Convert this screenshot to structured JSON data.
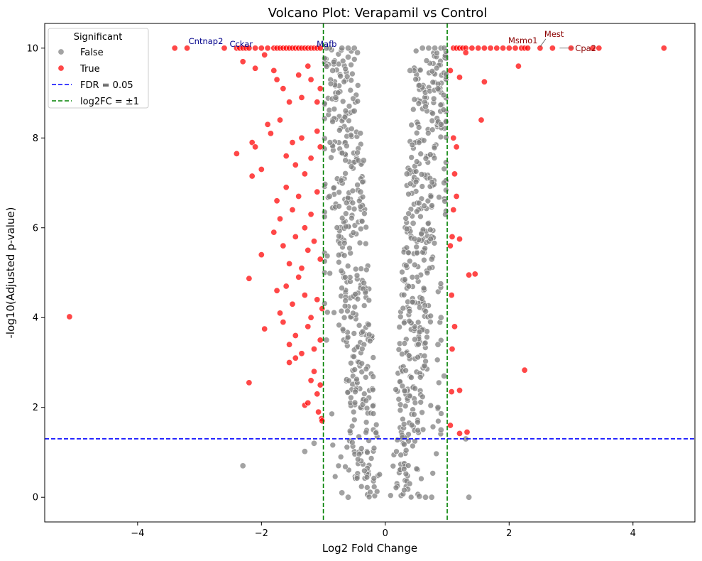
{
  "chart_data": {
    "type": "scatter",
    "title": "Volcano Plot: Verapamil vs Control",
    "xlabel": "Log2 Fold Change",
    "ylabel": "-log10(Adjusted p-value)",
    "xlim": [
      -5.5,
      5.0
    ],
    "ylim": [
      -0.55,
      10.55
    ],
    "xticks": [
      -4,
      -2,
      0,
      2,
      4
    ],
    "yticks": [
      0,
      2,
      4,
      6,
      8,
      10
    ],
    "grid": false,
    "legend": {
      "title": "Significant",
      "placement": "top-left",
      "entries": [
        {
          "label": "False",
          "kind": "marker",
          "color": "#808080"
        },
        {
          "label": "True",
          "kind": "marker",
          "color": "#ff0000"
        },
        {
          "label": "FDR = 0.05",
          "kind": "dashed-line",
          "color": "#0000ff"
        },
        {
          "label": "log2FC = ±1",
          "kind": "dashed-line",
          "color": "#008000"
        }
      ]
    },
    "reference_lines": [
      {
        "orientation": "horizontal",
        "value": 1.30103,
        "color": "#0000ff",
        "label": "FDR = 0.05"
      },
      {
        "orientation": "vertical",
        "value": -1,
        "color": "#008000",
        "label": "log2FC = ±1"
      },
      {
        "orientation": "vertical",
        "value": 1,
        "color": "#008000",
        "label": "log2FC = ±1"
      }
    ],
    "series": [
      {
        "name": "False",
        "color": "#808080",
        "points": [
          [
            -2.3,
            0.7
          ],
          [
            -1.3,
            1.02
          ],
          [
            -1.15,
            1.2
          ],
          [
            1.35,
            0.0
          ],
          [
            1.3,
            1.3
          ],
          [
            0.55,
            0.02
          ],
          [
            0.65,
            0.0
          ],
          [
            0.75,
            0.0
          ],
          [
            0.9,
            1.5
          ],
          [
            0.85,
            2.0
          ],
          [
            -0.6,
            0.0
          ],
          [
            -0.7,
            0.1
          ],
          [
            -0.95,
            3.5
          ],
          [
            -0.9,
            6.7
          ],
          [
            -0.85,
            9.5
          ],
          [
            -0.8,
            8.9
          ],
          [
            -0.6,
            9.8
          ],
          [
            -0.5,
            8.6
          ],
          [
            -0.4,
            6.8
          ],
          [
            -0.35,
            7.5
          ],
          [
            -0.9,
            10.0
          ],
          [
            -0.95,
            10.0
          ],
          [
            -0.7,
            10.0
          ],
          [
            -0.6,
            10.0
          ],
          [
            -0.5,
            10.0
          ],
          [
            -0.45,
            9.9
          ],
          [
            0.6,
            10.0
          ],
          [
            0.7,
            10.0
          ],
          [
            0.8,
            10.0
          ],
          [
            0.9,
            10.0
          ],
          [
            0.95,
            10.0
          ],
          [
            0.85,
            9.1
          ],
          [
            0.9,
            8.3
          ],
          [
            0.95,
            7.0
          ],
          [
            0.65,
            8.7
          ],
          [
            0.75,
            5.3
          ],
          [
            0.9,
            4.0
          ],
          [
            0.95,
            2.7
          ],
          [
            0.85,
            3.4
          ],
          [
            0.4,
            9.5
          ],
          [
            0.35,
            7.2
          ],
          [
            0.45,
            6.1
          ]
        ]
      },
      {
        "name": "True",
        "color": "#ff0000",
        "points": [
          [
            -5.1,
            4.02
          ],
          [
            -3.4,
            10.0
          ],
          [
            -3.2,
            10.0
          ],
          [
            -2.6,
            10.0
          ],
          [
            -2.4,
            10.0
          ],
          [
            -2.35,
            10.0
          ],
          [
            -2.3,
            10.0
          ],
          [
            -2.25,
            10.0
          ],
          [
            -2.2,
            10.0
          ],
          [
            -2.1,
            10.0
          ],
          [
            -2.0,
            10.0
          ],
          [
            -1.9,
            10.0
          ],
          [
            -1.8,
            10.0
          ],
          [
            -1.75,
            10.0
          ],
          [
            -1.7,
            10.0
          ],
          [
            -1.65,
            10.0
          ],
          [
            -1.6,
            10.0
          ],
          [
            -1.55,
            10.0
          ],
          [
            -1.5,
            10.0
          ],
          [
            -1.45,
            10.0
          ],
          [
            -1.4,
            10.0
          ],
          [
            -1.35,
            10.0
          ],
          [
            -1.3,
            10.0
          ],
          [
            -1.25,
            10.0
          ],
          [
            -1.2,
            10.0
          ],
          [
            -1.15,
            10.0
          ],
          [
            -1.1,
            10.0
          ],
          [
            -1.05,
            10.0
          ],
          [
            -2.3,
            9.7
          ],
          [
            -2.1,
            9.55
          ],
          [
            -1.95,
            9.85
          ],
          [
            -1.8,
            9.5
          ],
          [
            -1.75,
            9.3
          ],
          [
            -1.65,
            9.1
          ],
          [
            -1.55,
            8.8
          ],
          [
            -1.4,
            9.4
          ],
          [
            -1.35,
            8.9
          ],
          [
            -1.25,
            9.6
          ],
          [
            -1.2,
            9.3
          ],
          [
            -1.1,
            8.8
          ],
          [
            -1.05,
            9.1
          ],
          [
            -2.4,
            7.65
          ],
          [
            -2.15,
            7.9
          ],
          [
            -2.1,
            7.8
          ],
          [
            -2.0,
            7.3
          ],
          [
            -2.15,
            7.15
          ],
          [
            -1.9,
            8.3
          ],
          [
            -1.85,
            8.1
          ],
          [
            -1.7,
            8.4
          ],
          [
            -1.6,
            7.6
          ],
          [
            -1.5,
            7.9
          ],
          [
            -1.45,
            7.4
          ],
          [
            -1.35,
            8.0
          ],
          [
            -1.3,
            7.2
          ],
          [
            -1.2,
            7.55
          ],
          [
            -1.1,
            8.15
          ],
          [
            -1.05,
            7.8
          ],
          [
            -2.0,
            5.4
          ],
          [
            -1.8,
            5.9
          ],
          [
            -1.75,
            6.6
          ],
          [
            -1.7,
            6.2
          ],
          [
            -1.65,
            5.6
          ],
          [
            -1.6,
            6.9
          ],
          [
            -1.55,
            5.2
          ],
          [
            -1.5,
            6.4
          ],
          [
            -1.45,
            5.8
          ],
          [
            -1.4,
            6.7
          ],
          [
            -1.35,
            5.1
          ],
          [
            -1.3,
            6.0
          ],
          [
            -1.25,
            5.5
          ],
          [
            -1.2,
            6.3
          ],
          [
            -1.15,
            5.7
          ],
          [
            -1.1,
            6.8
          ],
          [
            -1.05,
            5.3
          ],
          [
            -2.2,
            4.87
          ],
          [
            -1.95,
            3.75
          ],
          [
            -1.75,
            4.6
          ],
          [
            -1.7,
            4.1
          ],
          [
            -1.65,
            3.9
          ],
          [
            -1.6,
            4.7
          ],
          [
            -1.55,
            3.4
          ],
          [
            -1.5,
            4.3
          ],
          [
            -1.45,
            3.6
          ],
          [
            -1.4,
            4.9
          ],
          [
            -1.35,
            3.2
          ],
          [
            -1.3,
            4.5
          ],
          [
            -1.25,
            3.8
          ],
          [
            -1.2,
            4.0
          ],
          [
            -1.15,
            3.3
          ],
          [
            -1.1,
            4.4
          ],
          [
            -1.05,
            3.5
          ],
          [
            -1.02,
            4.2
          ],
          [
            -2.2,
            2.55
          ],
          [
            -1.55,
            3.0
          ],
          [
            -1.45,
            3.1
          ],
          [
            -1.3,
            2.05
          ],
          [
            -1.25,
            2.1
          ],
          [
            -1.2,
            2.6
          ],
          [
            -1.15,
            2.8
          ],
          [
            -1.1,
            2.3
          ],
          [
            -1.08,
            1.9
          ],
          [
            -1.05,
            2.5
          ],
          [
            -1.03,
            1.75
          ],
          [
            -1.02,
            1.7
          ],
          [
            1.1,
            10.0
          ],
          [
            1.15,
            10.0
          ],
          [
            1.2,
            10.0
          ],
          [
            1.25,
            10.0
          ],
          [
            1.3,
            10.0
          ],
          [
            1.4,
            10.0
          ],
          [
            1.5,
            10.0
          ],
          [
            1.6,
            10.0
          ],
          [
            1.7,
            10.0
          ],
          [
            1.8,
            10.0
          ],
          [
            1.9,
            10.0
          ],
          [
            2.0,
            10.0
          ],
          [
            2.1,
            10.0
          ],
          [
            2.2,
            10.0
          ],
          [
            2.25,
            10.0
          ],
          [
            2.3,
            10.0
          ],
          [
            2.5,
            10.0
          ],
          [
            2.7,
            10.0
          ],
          [
            3.0,
            10.0
          ],
          [
            3.35,
            10.0
          ],
          [
            3.45,
            10.0
          ],
          [
            4.5,
            10.0
          ],
          [
            1.05,
            9.5
          ],
          [
            1.2,
            9.35
          ],
          [
            1.3,
            9.9
          ],
          [
            2.15,
            9.6
          ],
          [
            1.6,
            9.25
          ],
          [
            1.55,
            8.4
          ],
          [
            1.1,
            8.0
          ],
          [
            1.15,
            7.8
          ],
          [
            1.12,
            7.2
          ],
          [
            1.1,
            6.4
          ],
          [
            1.15,
            6.7
          ],
          [
            1.2,
            5.75
          ],
          [
            1.08,
            5.8
          ],
          [
            1.05,
            5.6
          ],
          [
            1.35,
            4.95
          ],
          [
            1.45,
            4.97
          ],
          [
            1.07,
            4.5
          ],
          [
            1.12,
            3.8
          ],
          [
            1.08,
            3.3
          ],
          [
            2.25,
            2.83
          ],
          [
            1.2,
            2.38
          ],
          [
            1.07,
            2.35
          ],
          [
            1.05,
            1.6
          ],
          [
            1.2,
            1.42
          ],
          [
            1.32,
            1.45
          ]
        ]
      }
    ],
    "annotations": [
      {
        "text": "Cntnap2",
        "x": -3.2,
        "y": 10.0,
        "color": "#00008b"
      },
      {
        "text": "Cckar",
        "x": -2.4,
        "y": 10.0,
        "color": "#00008b"
      },
      {
        "text": "Mafb",
        "x": -1.2,
        "y": 10.0,
        "color": "#00008b"
      },
      {
        "text": "Msmo1",
        "x": 2.1,
        "y": 10.0,
        "color": "#8b0000"
      },
      {
        "text": "Mest",
        "x": 2.5,
        "y": 10.0,
        "color": "#8b0000"
      },
      {
        "text": "Cpa2",
        "x": 2.7,
        "y": 10.0,
        "color": "#8b0000"
      }
    ]
  }
}
